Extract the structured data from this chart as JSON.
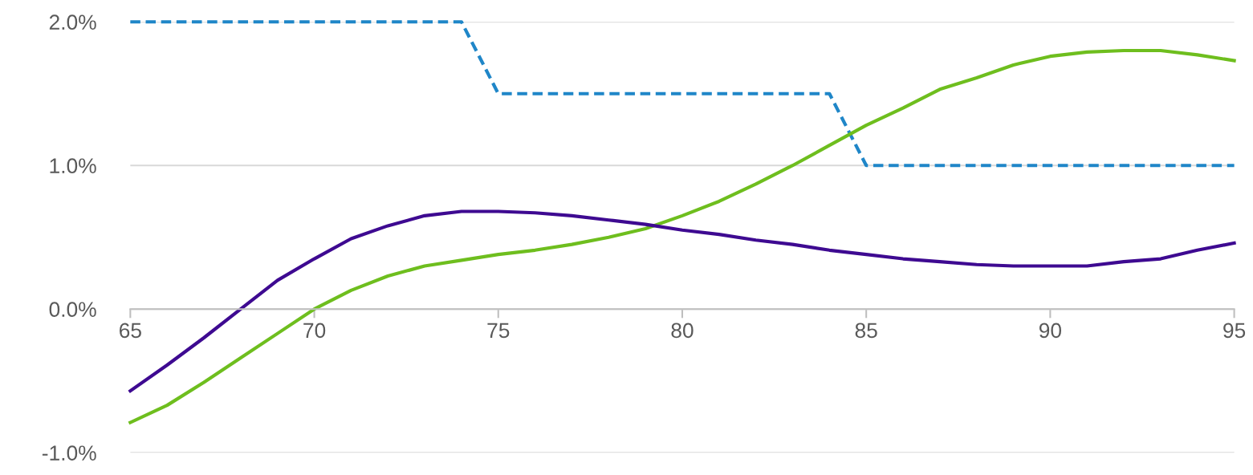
{
  "chart_data": {
    "type": "line",
    "x": [
      65,
      66,
      67,
      68,
      69,
      70,
      71,
      72,
      73,
      74,
      75,
      76,
      77,
      78,
      79,
      80,
      81,
      82,
      83,
      84,
      85,
      86,
      87,
      88,
      89,
      90,
      91,
      92,
      93,
      94,
      95
    ],
    "series": [
      {
        "color": "#1f86c8",
        "line_style": "dashed",
        "values": [
          2.0,
          2.0,
          2.0,
          2.0,
          2.0,
          2.0,
          2.0,
          2.0,
          2.0,
          2.0,
          1.5,
          1.5,
          1.5,
          1.5,
          1.5,
          1.5,
          1.5,
          1.5,
          1.5,
          1.5,
          1.0,
          1.0,
          1.0,
          1.0,
          1.0,
          1.0,
          1.0,
          1.0,
          1.0,
          1.0,
          1.0
        ]
      },
      {
        "color": "#6ebe1e",
        "line_style": "solid",
        "values": [
          -0.79,
          -0.67,
          -0.51,
          -0.34,
          -0.17,
          0.0,
          0.13,
          0.23,
          0.3,
          0.34,
          0.38,
          0.41,
          0.45,
          0.5,
          0.56,
          0.65,
          0.75,
          0.87,
          1.0,
          1.14,
          1.28,
          1.4,
          1.53,
          1.61,
          1.7,
          1.76,
          1.79,
          1.8,
          1.8,
          1.77,
          1.73
        ]
      },
      {
        "color": "#3e0a91",
        "line_style": "solid",
        "values": [
          -0.57,
          -0.39,
          -0.2,
          0.0,
          0.2,
          0.35,
          0.49,
          0.58,
          0.65,
          0.68,
          0.68,
          0.67,
          0.65,
          0.62,
          0.59,
          0.55,
          0.52,
          0.48,
          0.45,
          0.41,
          0.38,
          0.35,
          0.33,
          0.31,
          0.3,
          0.3,
          0.3,
          0.33,
          0.35,
          0.41,
          0.46
        ]
      }
    ],
    "xlim": [
      65,
      95
    ],
    "xticks": [
      65,
      70,
      75,
      80,
      85,
      90,
      95
    ],
    "ylim": [
      -1.0,
      2.0
    ],
    "yticks": [
      {
        "value": -1.0,
        "label": "-1.0%"
      },
      {
        "value": 0.0,
        "label": "0.0%"
      },
      {
        "value": 1.0,
        "label": "1.0%"
      },
      {
        "value": 2.0,
        "label": "2.0%"
      }
    ],
    "grid": "y",
    "legend": false,
    "marker": "none"
  }
}
